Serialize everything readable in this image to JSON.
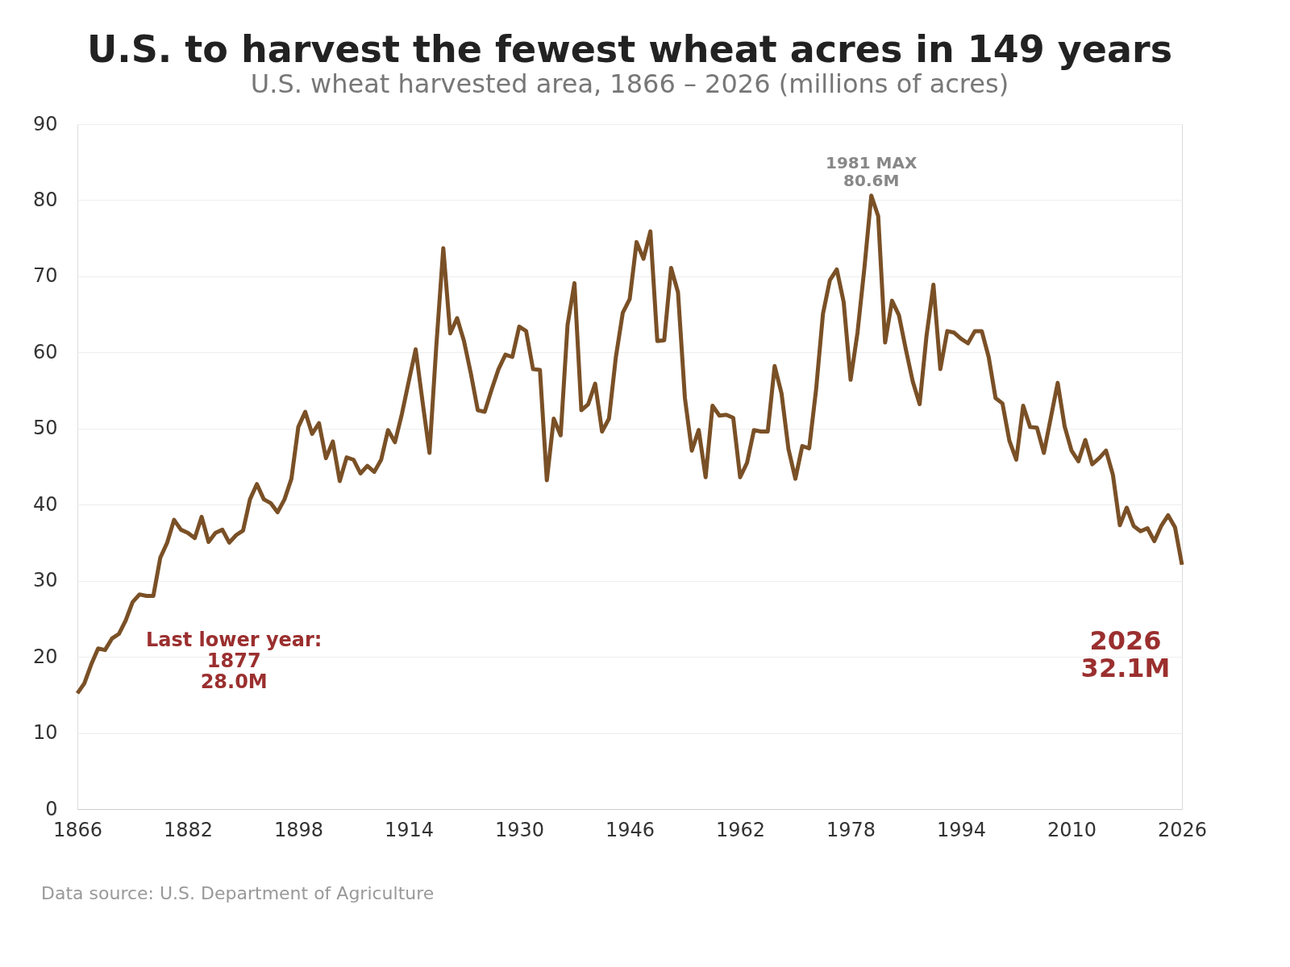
{
  "chart_data": {
    "type": "line",
    "title": "U.S. to harvest the fewest wheat acres in 149 years",
    "subtitle": "U.S. wheat harvested area, 1866 – 2026 (millions of acres)",
    "x": [
      1866,
      1867,
      1868,
      1869,
      1870,
      1871,
      1872,
      1873,
      1874,
      1875,
      1876,
      1877,
      1878,
      1879,
      1880,
      1881,
      1882,
      1883,
      1884,
      1885,
      1886,
      1887,
      1888,
      1889,
      1890,
      1891,
      1892,
      1893,
      1894,
      1895,
      1896,
      1897,
      1898,
      1899,
      1900,
      1901,
      1902,
      1903,
      1904,
      1905,
      1906,
      1907,
      1908,
      1909,
      1910,
      1911,
      1912,
      1913,
      1914,
      1915,
      1916,
      1917,
      1918,
      1919,
      1920,
      1921,
      1922,
      1923,
      1924,
      1925,
      1926,
      1927,
      1928,
      1929,
      1930,
      1931,
      1932,
      1933,
      1934,
      1935,
      1936,
      1937,
      1938,
      1939,
      1940,
      1941,
      1942,
      1943,
      1944,
      1945,
      1946,
      1947,
      1948,
      1949,
      1950,
      1951,
      1952,
      1953,
      1954,
      1955,
      1956,
      1957,
      1958,
      1959,
      1960,
      1961,
      1962,
      1963,
      1964,
      1965,
      1966,
      1967,
      1968,
      1969,
      1970,
      1971,
      1972,
      1973,
      1974,
      1975,
      1976,
      1977,
      1978,
      1979,
      1980,
      1981,
      1982,
      1983,
      1984,
      1985,
      1986,
      1987,
      1988,
      1989,
      1990,
      1991,
      1992,
      1993,
      1994,
      1995,
      1996,
      1997,
      1998,
      1999,
      2000,
      2001,
      2002,
      2003,
      2004,
      2005,
      2006,
      2007,
      2008,
      2009,
      2010,
      2011,
      2012,
      2013,
      2014,
      2015,
      2016,
      2017,
      2018,
      2019,
      2020,
      2021,
      2022,
      2023,
      2024,
      2025,
      2026
    ],
    "series": [
      {
        "color": "#7a5026",
        "values": [
          15.2,
          16.5,
          19,
          21.1,
          20.9,
          22.4,
          23,
          24.8,
          27.2,
          28.2,
          28,
          28.0,
          33,
          35,
          38,
          36.7,
          36.3,
          35.6,
          38.4,
          35.1,
          36.3,
          36.7,
          35,
          36,
          36.6,
          40.7,
          42.7,
          40.7,
          40.2,
          39,
          40.7,
          43.4,
          50.2,
          52.2,
          49.3,
          50.7,
          46.1,
          48.3,
          43.1,
          46.2,
          45.9,
          44.1,
          45.1,
          44.3,
          45.9,
          49.8,
          48.2,
          51.9,
          56.2,
          60.4,
          53.5,
          46.8,
          61,
          73.7,
          62.5,
          64.5,
          61.5,
          57.2,
          52.4,
          52.2,
          55.1,
          57.8,
          59.7,
          59.4,
          63.4,
          62.8,
          57.8,
          57.7,
          43.2,
          51.3,
          49.1,
          63.6,
          69.1,
          52.4,
          53.2,
          55.9,
          49.6,
          51.3,
          59.4,
          65.2,
          67,
          74.5,
          72.3,
          75.9,
          61.5,
          61.6,
          71.1,
          67.9,
          54,
          47.1,
          49.8,
          43.6,
          53,
          51.7,
          51.8,
          51.4,
          43.6,
          45.5,
          49.8,
          49.6,
          49.6,
          58.2,
          54.6,
          47.3,
          43.4,
          47.7,
          47.4,
          55.1,
          65.1,
          69.5,
          70.9,
          66.6,
          56.4,
          62.6,
          71.1,
          80.6,
          77.9,
          61.3,
          66.8,
          64.9,
          60.4,
          56.2,
          53.2,
          62.2,
          68.9,
          57.8,
          62.8,
          62.6,
          61.8,
          61.2,
          62.8,
          62.8,
          59.4,
          54,
          53.3,
          48.4,
          45.9,
          53,
          50.2,
          50.1,
          46.8,
          51.4,
          56,
          50.3,
          47.1,
          45.7,
          48.5,
          45.3,
          46.1,
          47.1,
          43.9,
          37.3,
          39.6,
          37.2,
          36.5,
          36.9,
          35.2,
          37.2,
          38.6,
          37,
          32.1
        ]
      }
    ],
    "xlim": [
      1866,
      2026
    ],
    "xticks": [
      1866,
      1882,
      1898,
      1914,
      1930,
      1946,
      1962,
      1978,
      1994,
      2010,
      2026
    ],
    "ylim": [
      0,
      90
    ],
    "yticks": [
      0,
      10,
      20,
      30,
      40,
      50,
      60,
      70,
      80,
      90
    ],
    "grid": "y",
    "marker": "none",
    "line_style": "solid",
    "annotations": [
      {
        "text": "1981 MAX\n80.6M",
        "x": 1981,
        "y": 80.6
      },
      {
        "text": "Last lower year:\n1877\n28.0M",
        "x": 1877,
        "y": 28.0
      },
      {
        "text": "2026\n32.1M",
        "x": 2026,
        "y": 32.1
      },
      "Data source: U.S. Department of Agriculture"
    ]
  }
}
